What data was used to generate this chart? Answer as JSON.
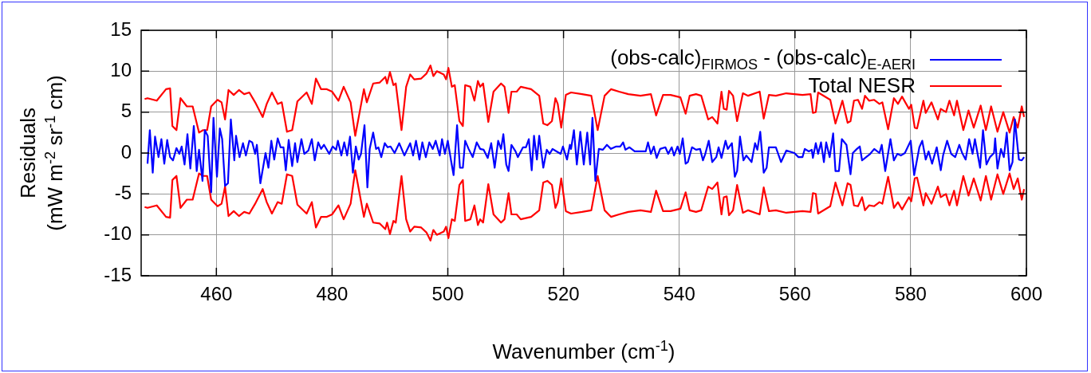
{
  "chart_data": {
    "type": "line",
    "xlabel": "Wavenumber (cm$^{-1}$)",
    "ylabel": "Residuals\n(mW m$^{-2}$ sr$^{-1}$ cm)",
    "xlim": [
      447,
      600
    ],
    "xticks": [
      460,
      480,
      500,
      520,
      540,
      560,
      580,
      600
    ],
    "ylim": [
      -15,
      15
    ],
    "yticks": [
      -15,
      -10,
      -5,
      0,
      5,
      10,
      15
    ],
    "grid": true,
    "legend": "top right",
    "marker": "none",
    "line_style": "solid",
    "series": [
      {
        "name": "(obs-calc)$_{FIRMOS}$ - (obs-calc)$_{E-AERI}$",
        "color": "#0000ff",
        "x": [
          448.1,
          448.5,
          449.0,
          449.4,
          450.0,
          450.5,
          451.0,
          451.5,
          452.0,
          452.5,
          453.1,
          453.6,
          454.0,
          454.5,
          455.0,
          455.5,
          456.1,
          456.6,
          457.0,
          457.6,
          458.0,
          458.5,
          459.1,
          459.5,
          460.1,
          460.6,
          461.0,
          461.5,
          462.0,
          462.5,
          463.1,
          463.4,
          464.0,
          464.6,
          465.1,
          465.7,
          466.2,
          466.7,
          467.0,
          467.6,
          468.5,
          469.0,
          469.5,
          470.0,
          470.6,
          471.1,
          471.6,
          472.0,
          472.5,
          473.1,
          473.6,
          474.0,
          474.7,
          475.2,
          475.9,
          476.5,
          477.0,
          477.6,
          478.1,
          478.6,
          479.5,
          480.1,
          480.7,
          481.0,
          481.6,
          482.1,
          482.6,
          483.1,
          483.6,
          484.1,
          484.6,
          485.0,
          485.6,
          486.1,
          486.5,
          487.1,
          487.6,
          488.0,
          488.5,
          489.1,
          489.6,
          490.1,
          490.8,
          491.6,
          492.5,
          493.5,
          494.0,
          494.5,
          495.1,
          495.6,
          496.2,
          496.8,
          497.4,
          497.9,
          498.6,
          499.0,
          499.5,
          500.0,
          500.6,
          501.0,
          501.6,
          502.1,
          502.6,
          503.0,
          503.6,
          504.3,
          505.0,
          505.6,
          506.2,
          506.9,
          507.5,
          508.1,
          508.7,
          509.2,
          509.6,
          510.1,
          510.5,
          511.0,
          511.7,
          512.1,
          513.0,
          513.5,
          514.0,
          514.5,
          514.9,
          515.4,
          515.8,
          516.5,
          517.1,
          517.6,
          518.1,
          518.8,
          519.5,
          519.9,
          520.6,
          521.1,
          521.3,
          521.8,
          522.3,
          522.9,
          523.5,
          524.1,
          524.6,
          525.0,
          525.5,
          526.1,
          526.8,
          527.5,
          528.2,
          529.1,
          529.8,
          530.3,
          530.7,
          531.4,
          532.3,
          534.2,
          534.6,
          535.1,
          535.6,
          536.1,
          536.7,
          537.6,
          538.1,
          538.7,
          539.1,
          539.7,
          540.1,
          540.6,
          541.1,
          541.5,
          542.2,
          542.9,
          543.6,
          544.1,
          544.5,
          545.1,
          545.7,
          546.4,
          546.8,
          547.3,
          548.0,
          548.4,
          549.1,
          549.6,
          550.0,
          550.5,
          551.1,
          551.6,
          552.5,
          553.1,
          553.5,
          554.0,
          554.6,
          555.1,
          555.5,
          556.7,
          557.6,
          558.5,
          559.9,
          560.6,
          561.3,
          561.7,
          562.4,
          562.9,
          563.1,
          563.6,
          564.0,
          564.5,
          565.0,
          565.4,
          566.0,
          566.6,
          567.0,
          567.6,
          568.1,
          568.9,
          569.6,
          570.0,
          570.7,
          571.2,
          571.6,
          572.3,
          573.0,
          573.7,
          574.6,
          575.0,
          575.6,
          576.5,
          577.1,
          577.7,
          578.3,
          579.0,
          580.0,
          580.6,
          581.5,
          582.0,
          582.6,
          583.1,
          583.7,
          584.5,
          585.2,
          585.6,
          586.3,
          587.0,
          587.7,
          588.4,
          588.9,
          589.5,
          590.1,
          590.7,
          591.1,
          592.0,
          592.5,
          593.1,
          593.7,
          594.4,
          594.6,
          595.0,
          595.6,
          596.1,
          596.6,
          597.1,
          597.6,
          598.0,
          598.7,
          599.2,
          599.6
        ],
        "values": [
          -1.3,
          2.8,
          -2.4,
          2.0,
          -0.5,
          1.7,
          -1.3,
          1.6,
          -0.5,
          -0.9,
          0.6,
          -0.1,
          0.8,
          -1.4,
          2.3,
          -1.9,
          3.3,
          -2.2,
          0.4,
          -3.4,
          2.8,
          2.1,
          -4.8,
          4.3,
          -2.9,
          3.0,
          1.7,
          -4.0,
          -3.7,
          4.1,
          -0.9,
          2.1,
          -0.5,
          1.2,
          -0.3,
          1.5,
          1.3,
          -0.1,
          1.0,
          -3.7,
          0.0,
          -1.8,
          1.5,
          -0.8,
          1.8,
          0.7,
          0.7,
          -2.1,
          1.6,
          -1.6,
          1.2,
          -1.1,
          1.7,
          -0.1,
          0.3,
          1.7,
          -0.9,
          1.3,
          0.5,
          1.0,
          -0.1,
          0.8,
          0.4,
          1.5,
          -0.3,
          1.3,
          -0.3,
          2.0,
          -2.4,
          0.8,
          -0.8,
          -0.1,
          3.4,
          -4.2,
          0.5,
          2.5,
          0.5,
          0.7,
          -0.5,
          1.2,
          0.7,
          0.8,
          0.0,
          1.2,
          -0.3,
          1.2,
          -0.3,
          1.5,
          -0.8,
          1.3,
          -0.5,
          1.3,
          0.5,
          1.5,
          -0.3,
          1.7,
          -0.1,
          1.5,
          -1.1,
          -2.7,
          3.4,
          -1.8,
          -1.8,
          1.5,
          0.5,
          -0.5,
          1.3,
          0.5,
          0.4,
          -0.6,
          1.2,
          -1.8,
          1.5,
          0.5,
          2.3,
          -1.4,
          -2.2,
          1.0,
          0.2,
          -0.5,
          0.7,
          0.7,
          1.7,
          -2.1,
          2.1,
          -0.8,
          2.1,
          -1.8,
          0.4,
          -0.1,
          0.5,
          0.2,
          -0.1,
          0.8,
          -0.8,
          1.0,
          0.5,
          2.8,
          -1.4,
          2.6,
          -1.4,
          2.5,
          -1.4,
          4.3,
          -3.4,
          0.5,
          0.4,
          1.0,
          0.5,
          0.8,
          0.8,
          1.3,
          0.4,
          0.7,
          0.2,
          0.2,
          1.3,
          -0.1,
          0.8,
          -0.6,
          0.5,
          0.7,
          -0.1,
          0.7,
          -0.3,
          0.8,
          -0.1,
          1.8,
          -1.3,
          -1.1,
          0.7,
          0.4,
          0.5,
          -0.9,
          -0.1,
          1.5,
          -1.1,
          -0.5,
          0.7,
          -0.6,
          1.5,
          0.5,
          1.2,
          -2.9,
          -2.2,
          2.0,
          -0.9,
          -0.3,
          -1.1,
          1.2,
          0.4,
          2.6,
          -2.4,
          -1.8,
          0.7,
          0.7,
          -1.1,
          0.3,
          0.0,
          -0.5,
          -0.5,
          0.5,
          0.2,
          0.4,
          -0.6,
          1.2,
          -0.1,
          1.3,
          -1.1,
          1.3,
          -0.5,
          2.4,
          -2.2,
          -2.2,
          1.7,
          1.0,
          -2.6,
          0.0,
          0.5,
          0.8,
          -0.9,
          -0.5,
          -0.1,
          0.5,
          0.0,
          1.0,
          -2.2,
          1.7,
          -0.9,
          -0.1,
          -0.3,
          0.0,
          1.5,
          -2.7,
          0.7,
          1.5,
          -0.8,
          0.2,
          -1.3,
          0.7,
          -2.1,
          -0.3,
          1.5,
          -0.1,
          -0.5,
          1.0,
          0.0,
          -0.8,
          1.7,
          -0.1,
          1.7,
          -1.8,
          2.8,
          -1.4,
          -0.5,
          0.0,
          1.8,
          -1.9,
          0.5,
          -0.5,
          2.5,
          -2.1,
          -1.1,
          4.1,
          -0.8,
          -0.9,
          -0.5
        ]
      },
      {
        "name": "Total NESR",
        "color": "#ff0000",
        "x": [
          447.6,
          448.1,
          449.7,
          451.3,
          452.0,
          452.4,
          453.1,
          453.8,
          454.9,
          455.9,
          457.0,
          457.7,
          458.4,
          459.1,
          460.2,
          460.9,
          461.5,
          462.1,
          463.0,
          463.9,
          464.8,
          465.7,
          466.7,
          468.0,
          468.7,
          469.6,
          470.6,
          471.3,
          472.2,
          473.1,
          474.0,
          475.6,
          476.5,
          477.2,
          478.1,
          479.1,
          480.0,
          481.1,
          482.0,
          483.2,
          484.0,
          485.5,
          486.0,
          487.1,
          488.2,
          489.2,
          489.5,
          490.0,
          490.6,
          491.0,
          492.0,
          492.8,
          493.5,
          494.2,
          495.4,
          496.3,
          497.0,
          497.5,
          498.1,
          499.3,
          499.7,
          500.1,
          500.7,
          501.2,
          502.0,
          502.6,
          503.0,
          503.9,
          504.6,
          505.2,
          505.6,
          506.1,
          507.0,
          507.9,
          509.2,
          509.8,
          510.5,
          511.0,
          511.9,
          512.6,
          514.4,
          515.8,
          516.5,
          517.2,
          518.0,
          518.6,
          519.0,
          519.6,
          520.4,
          521.3,
          523.2,
          524.8,
          525.9,
          527.1,
          528.2,
          529.6,
          531.2,
          533.3,
          535.1,
          536.0,
          537.2,
          538.5,
          540.2,
          541.1,
          541.8,
          542.9,
          543.8,
          545.0,
          545.7,
          546.6,
          547.3,
          547.7,
          548.2,
          548.6,
          549.3,
          550.0,
          551.0,
          551.9,
          553.9,
          554.6,
          555.5,
          556.7,
          558.5,
          561.3,
          562.7,
          563.1,
          563.6,
          564.0,
          566.1,
          567.0,
          568.2,
          569.1,
          569.6,
          570.2,
          570.9,
          571.6,
          572.1,
          572.8,
          573.7,
          574.6,
          575.1,
          576.1,
          577.1,
          577.8,
          578.5,
          579.7,
          580.1,
          580.7,
          581.1,
          582.2,
          582.6,
          583.6,
          584.7,
          585.2,
          586.1,
          586.7,
          587.5,
          588.0,
          589.1,
          590.0,
          590.9,
          592.1,
          593.0,
          593.9,
          595.0,
          596.0,
          597.1,
          597.8,
          598.5,
          599.2,
          599.6
        ],
        "values": [
          6.6,
          6.7,
          6.4,
          7.8,
          7.9,
          3.3,
          2.8,
          6.7,
          5.7,
          5.7,
          2.5,
          2.8,
          2.8,
          5.7,
          6.5,
          6.2,
          4.1,
          7.7,
          7.1,
          7.7,
          7.2,
          7.4,
          6.2,
          4.4,
          6.0,
          7.4,
          6.0,
          6.2,
          2.6,
          2.8,
          6.3,
          7.4,
          6.0,
          9.1,
          7.8,
          7.8,
          7.5,
          6.4,
          8.1,
          6.2,
          2.1,
          7.8,
          6.2,
          8.5,
          8.6,
          9.3,
          8.5,
          9.9,
          8.3,
          8.5,
          2.8,
          8.1,
          9.6,
          9.0,
          9.1,
          9.7,
          10.7,
          9.4,
          10.0,
          9.6,
          9.0,
          10.4,
          8.1,
          8.3,
          3.9,
          3.3,
          8.3,
          8.1,
          6.4,
          8.8,
          8.1,
          8.5,
          3.8,
          7.5,
          8.5,
          8.1,
          4.9,
          7.5,
          7.5,
          8.1,
          7.8,
          7.0,
          3.6,
          3.4,
          3.9,
          6.7,
          6.0,
          3.1,
          7.1,
          7.4,
          7.2,
          7.0,
          2.8,
          7.0,
          7.8,
          7.5,
          7.2,
          7.0,
          7.2,
          4.6,
          7.1,
          7.1,
          6.8,
          4.8,
          7.0,
          7.2,
          7.0,
          4.1,
          4.4,
          3.6,
          7.5,
          5.4,
          5.3,
          7.6,
          7.0,
          3.9,
          7.3,
          7.0,
          7.5,
          4.2,
          7.1,
          7.0,
          7.3,
          7.1,
          7.2,
          4.9,
          5.0,
          7.4,
          6.5,
          3.6,
          6.4,
          3.7,
          3.9,
          6.4,
          6.5,
          5.4,
          7.0,
          6.4,
          6.5,
          6.0,
          6.2,
          2.9,
          6.7,
          6.0,
          6.9,
          5.4,
          5.9,
          3.1,
          3.0,
          6.4,
          4.9,
          6.2,
          4.1,
          5.4,
          5.0,
          6.4,
          4.6,
          6.4,
          2.8,
          5.2,
          3.1,
          5.8,
          2.8,
          5.7,
          2.6,
          5.0,
          2.5,
          4.4,
          3.1,
          5.7,
          4.4
        ]
      },
      {
        "color": "#ff0000",
        "x": [
          447.6,
          448.1,
          449.7,
          451.3,
          452.0,
          452.4,
          453.1,
          453.8,
          454.9,
          455.9,
          457.0,
          457.7,
          458.4,
          459.1,
          460.2,
          460.9,
          461.5,
          462.1,
          463.0,
          463.9,
          464.8,
          465.7,
          466.7,
          468.0,
          468.7,
          469.6,
          470.6,
          471.3,
          472.2,
          473.1,
          474.0,
          475.6,
          476.5,
          477.2,
          478.1,
          479.1,
          480.0,
          481.1,
          482.0,
          483.2,
          484.0,
          485.5,
          486.0,
          487.1,
          488.2,
          489.2,
          489.5,
          490.0,
          490.6,
          491.0,
          492.0,
          492.8,
          493.5,
          494.2,
          495.4,
          496.3,
          497.0,
          497.5,
          498.1,
          499.3,
          499.7,
          500.1,
          500.7,
          501.2,
          502.0,
          502.6,
          503.0,
          503.9,
          504.6,
          505.2,
          505.6,
          506.1,
          507.0,
          507.9,
          509.2,
          509.8,
          510.5,
          511.0,
          511.9,
          512.6,
          514.4,
          515.8,
          516.5,
          517.2,
          518.0,
          518.6,
          519.0,
          519.6,
          520.4,
          521.3,
          523.2,
          524.8,
          525.9,
          527.1,
          528.2,
          529.6,
          531.2,
          533.3,
          535.1,
          536.0,
          537.2,
          538.5,
          540.2,
          541.1,
          541.8,
          542.9,
          543.8,
          545.0,
          545.7,
          546.6,
          547.3,
          547.7,
          548.2,
          548.6,
          549.3,
          550.0,
          551.0,
          551.9,
          553.9,
          554.6,
          555.5,
          556.7,
          558.5,
          561.3,
          562.7,
          563.1,
          563.6,
          564.0,
          566.1,
          567.0,
          568.2,
          569.1,
          569.6,
          570.2,
          570.9,
          571.6,
          572.1,
          572.8,
          573.7,
          574.6,
          575.1,
          576.1,
          577.1,
          577.8,
          578.5,
          579.7,
          580.1,
          580.7,
          581.1,
          582.2,
          582.6,
          583.6,
          584.7,
          585.2,
          586.1,
          586.7,
          587.5,
          588.0,
          589.1,
          590.0,
          590.9,
          592.1,
          593.0,
          593.9,
          595.0,
          596.0,
          597.1,
          597.8,
          598.5,
          599.2,
          599.6
        ],
        "values": [
          -6.6,
          -6.7,
          -6.4,
          -7.8,
          -7.9,
          -3.3,
          -2.8,
          -6.7,
          -5.7,
          -5.7,
          -2.5,
          -2.8,
          -2.8,
          -5.7,
          -6.5,
          -6.2,
          -4.1,
          -7.7,
          -7.1,
          -7.7,
          -7.2,
          -7.4,
          -6.2,
          -4.4,
          -6.0,
          -7.4,
          -6.0,
          -6.2,
          -2.6,
          -2.8,
          -6.3,
          -7.4,
          -6.0,
          -9.1,
          -7.8,
          -7.8,
          -7.5,
          -6.4,
          -8.1,
          -6.2,
          -2.1,
          -7.8,
          -6.2,
          -8.5,
          -8.6,
          -9.3,
          -8.5,
          -9.9,
          -8.3,
          -8.5,
          -2.8,
          -8.1,
          -9.6,
          -9.0,
          -9.1,
          -9.7,
          -10.7,
          -9.4,
          -10.0,
          -9.6,
          -9.0,
          -10.4,
          -8.1,
          -8.3,
          -3.9,
          -3.3,
          -8.3,
          -8.1,
          -6.4,
          -8.8,
          -8.1,
          -8.5,
          -3.8,
          -7.5,
          -8.5,
          -8.1,
          -4.9,
          -7.5,
          -7.5,
          -8.1,
          -7.8,
          -7.0,
          -3.6,
          -3.4,
          -3.9,
          -6.7,
          -6.0,
          -3.1,
          -7.1,
          -7.4,
          -7.2,
          -7.0,
          -2.8,
          -7.0,
          -7.8,
          -7.5,
          -7.2,
          -7.0,
          -7.2,
          -4.6,
          -7.1,
          -7.1,
          -6.8,
          -4.8,
          -7.0,
          -7.2,
          -7.0,
          -4.1,
          -4.4,
          -3.6,
          -7.5,
          -5.4,
          -5.3,
          -7.6,
          -7.0,
          -3.9,
          -7.3,
          -7.0,
          -7.5,
          -4.2,
          -7.1,
          -7.0,
          -7.3,
          -7.1,
          -7.2,
          -4.9,
          -5.0,
          -7.4,
          -6.5,
          -3.6,
          -6.4,
          -3.7,
          -3.9,
          -6.4,
          -6.5,
          -5.4,
          -7.0,
          -6.4,
          -6.5,
          -6.0,
          -6.2,
          -2.9,
          -6.7,
          -6.0,
          -6.9,
          -5.4,
          -5.9,
          -3.1,
          -3.0,
          -6.4,
          -4.9,
          -6.2,
          -4.1,
          -5.4,
          -5.0,
          -6.4,
          -4.6,
          -6.4,
          -2.8,
          -5.2,
          -3.1,
          -5.8,
          -2.8,
          -5.7,
          -2.6,
          -5.0,
          -2.5,
          -4.4,
          -3.1,
          -5.7,
          -4.4
        ]
      }
    ]
  }
}
